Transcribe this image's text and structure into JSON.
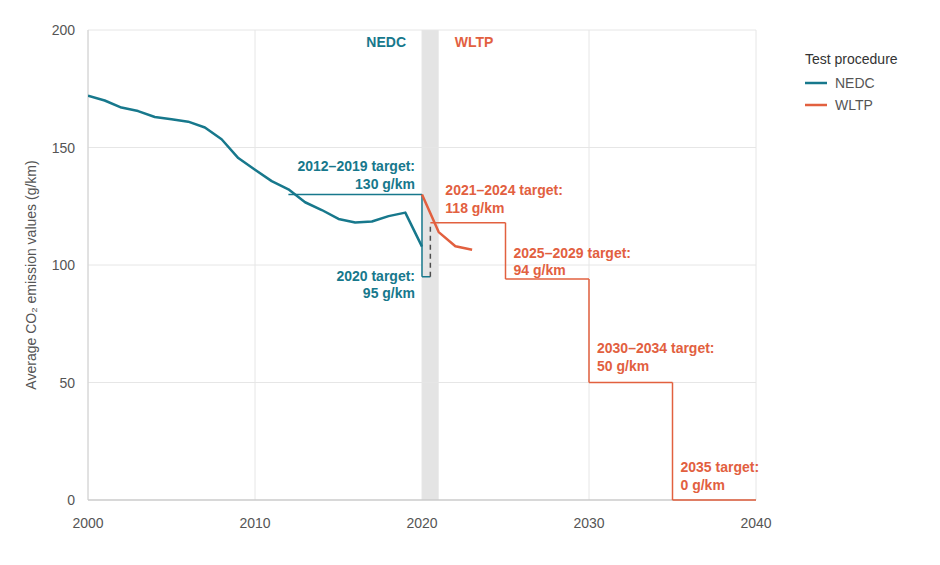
{
  "chart_data": {
    "type": "line",
    "y_label": "Average CO₂ emission values (g/km)",
    "xlim": [
      2000,
      2040
    ],
    "xticks": [
      2000,
      2010,
      2020,
      2030,
      2040
    ],
    "ylim": [
      0,
      200
    ],
    "yticks": [
      0,
      50,
      100,
      150,
      200
    ],
    "grid": true,
    "legend": "right",
    "legend_title": "Test procedure",
    "region_labels": [
      "NEDC",
      "WLTP"
    ],
    "transition": [
      2020,
      2021
    ],
    "series": [
      {
        "name": "NEDC",
        "color": "#17788c",
        "x": [
          2000,
          2001,
          2002,
          2003,
          2004,
          2005,
          2006,
          2007,
          2008,
          2009,
          2010,
          2011,
          2012,
          2013,
          2014,
          2015,
          2016,
          2017,
          2018,
          2019,
          2020
        ],
        "values": [
          172,
          170,
          167,
          165.5,
          163,
          162,
          161,
          158.5,
          153.5,
          145.5,
          140.5,
          135.7,
          132.2,
          126.7,
          123.4,
          119.6,
          118.1,
          118.5,
          120.8,
          122.3,
          107.8
        ]
      },
      {
        "name": "WLTP",
        "color": "#e2603f",
        "x": [
          2020,
          2021,
          2022,
          2023
        ],
        "values": [
          130,
          114,
          108,
          106.5
        ]
      }
    ],
    "targets": [
      {
        "text": [
          "2012–2019 target:",
          "130 g/km"
        ],
        "from": 2012,
        "to": 2020,
        "value": 130,
        "procedure": "NEDC"
      },
      {
        "text": [
          "2020 target:",
          "95 g/km"
        ],
        "from": 2020,
        "to": 2020.5,
        "value": 95,
        "procedure": "NEDC"
      },
      {
        "text": [
          "2021–2024 target:",
          "118 g/km"
        ],
        "from": 2020.5,
        "to": 2025,
        "value": 118,
        "procedure": "WLTP"
      },
      {
        "text": [
          "2025–2029 target:",
          "94 g/km"
        ],
        "from": 2025,
        "to": 2030,
        "value": 94,
        "procedure": "WLTP"
      },
      {
        "text": [
          "2030–2034 target:",
          "50 g/km"
        ],
        "from": 2030,
        "to": 2035,
        "value": 50,
        "procedure": "WLTP"
      },
      {
        "text": [
          "2035 target:",
          "0 g/km"
        ],
        "from": 2035,
        "to": 2040,
        "value": 0,
        "procedure": "WLTP"
      }
    ]
  }
}
